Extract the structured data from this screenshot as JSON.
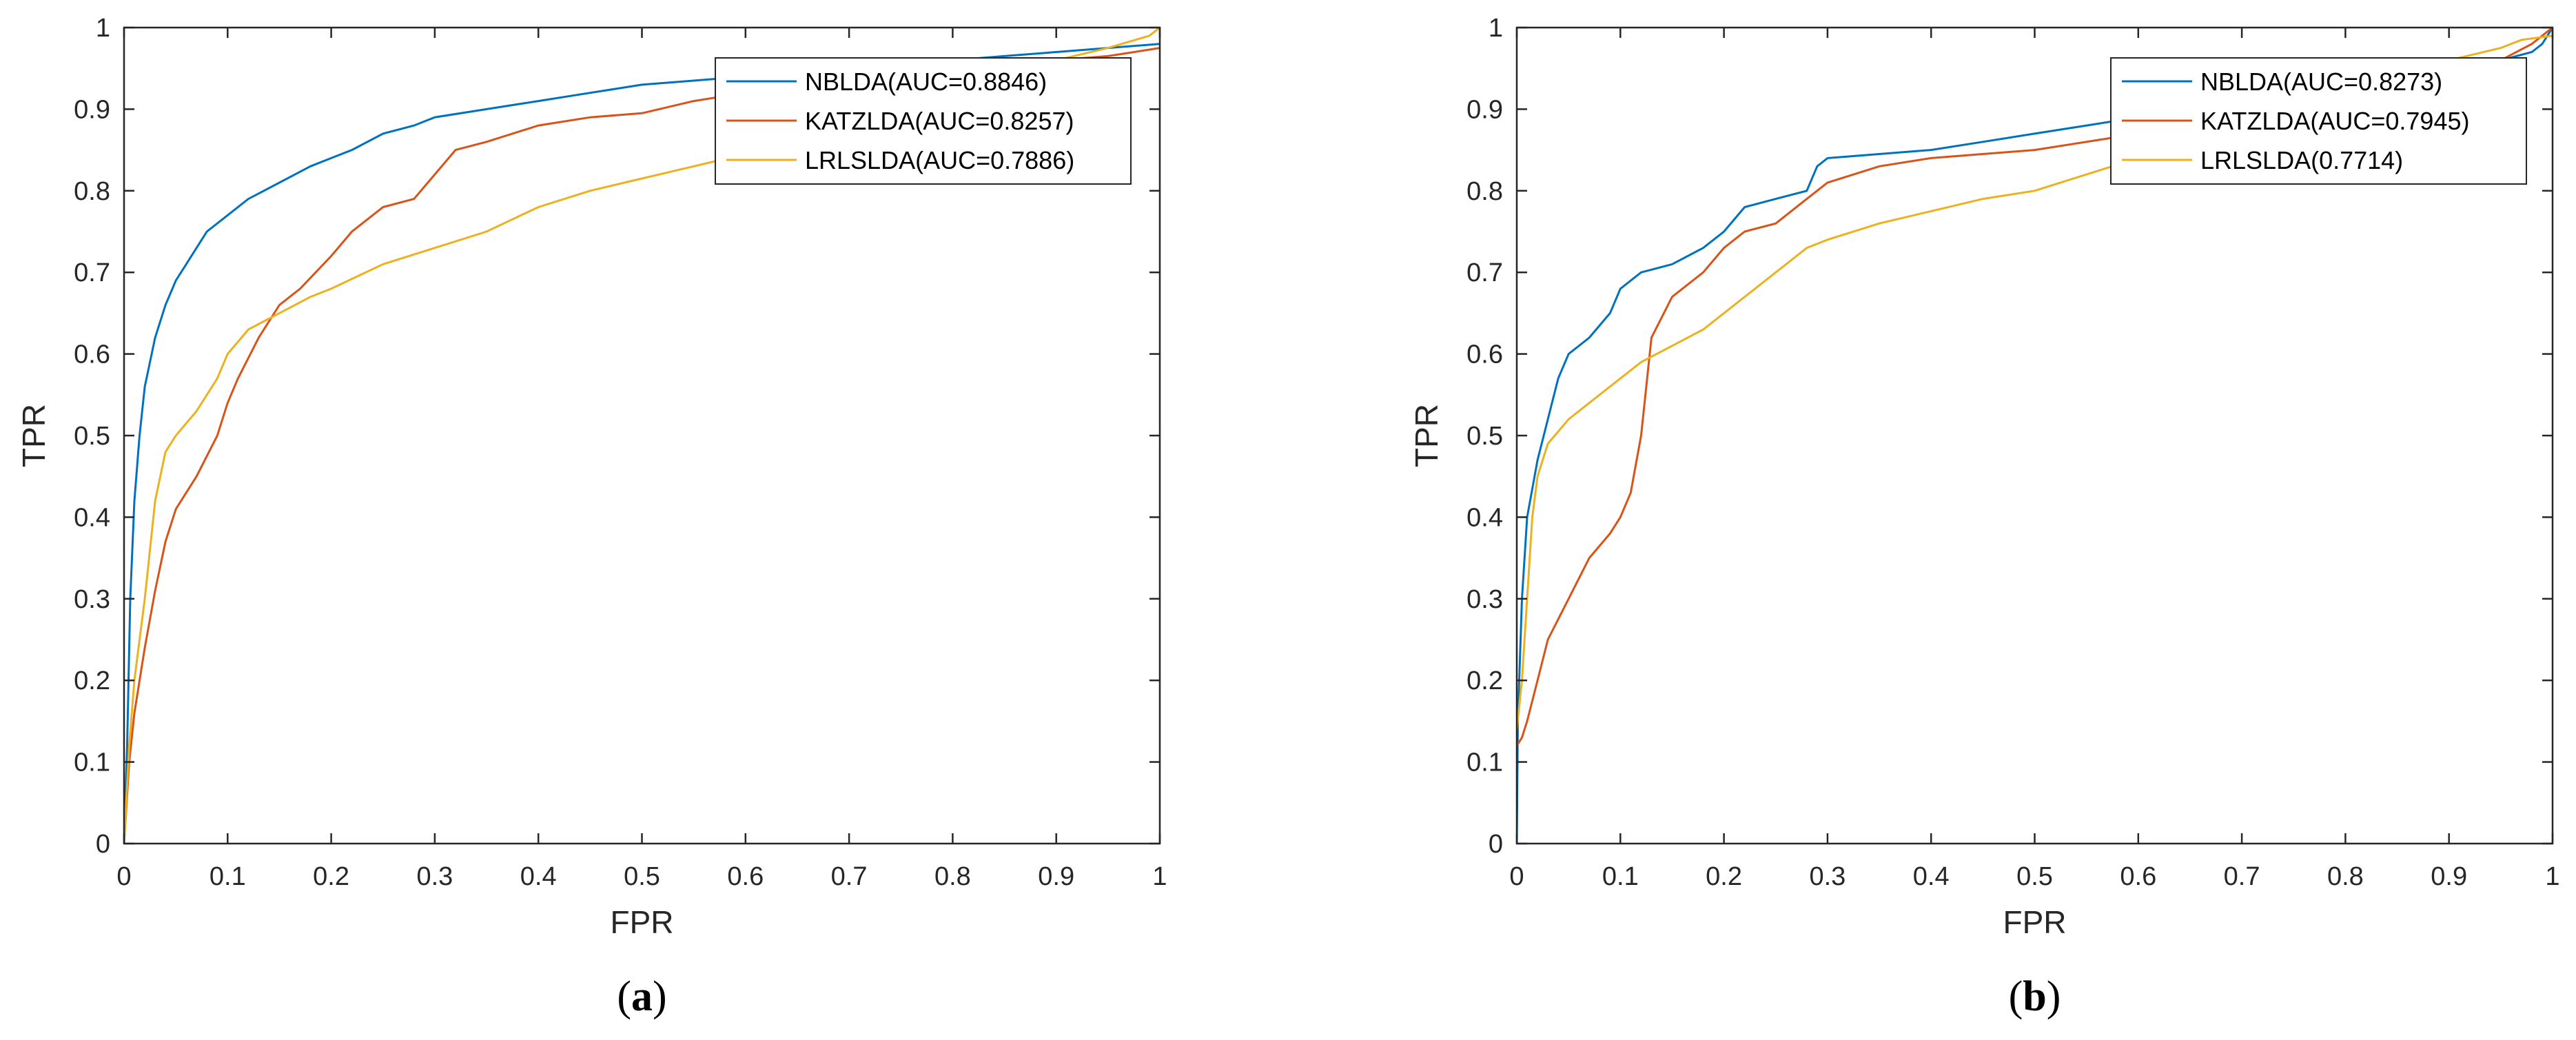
{
  "colors": {
    "series1": "#0072BD",
    "series2": "#D95319",
    "series3": "#EDB120",
    "axis": "#262626"
  },
  "chart_data": [
    {
      "type": "line",
      "panel_label_open": "(",
      "panel_label_letter": "a",
      "panel_label_close": ")",
      "xlabel": "FPR",
      "ylabel": "TPR",
      "xlim": [
        0,
        1
      ],
      "ylim": [
        0,
        1
      ],
      "xticks": [
        "0",
        "0.1",
        "0.2",
        "0.3",
        "0.4",
        "0.5",
        "0.6",
        "0.7",
        "0.8",
        "0.9",
        "1"
      ],
      "yticks": [
        "0",
        "0.1",
        "0.2",
        "0.3",
        "0.4",
        "0.5",
        "0.6",
        "0.7",
        "0.8",
        "0.9",
        "1"
      ],
      "legend_position": "top-right",
      "grid": false,
      "series": [
        {
          "name": "NBLDA(AUC=0.8846)",
          "x": [
            0,
            0.003,
            0.006,
            0.01,
            0.015,
            0.02,
            0.03,
            0.04,
            0.05,
            0.06,
            0.07,
            0.08,
            0.1,
            0.12,
            0.15,
            0.18,
            0.2,
            0.22,
            0.25,
            0.28,
            0.3,
            0.35,
            0.4,
            0.45,
            0.5,
            0.55,
            0.6,
            0.65,
            0.7,
            0.75,
            0.8,
            0.85,
            0.9,
            0.95,
            1.0
          ],
          "y": [
            0,
            0.12,
            0.3,
            0.42,
            0.5,
            0.56,
            0.62,
            0.66,
            0.69,
            0.71,
            0.73,
            0.75,
            0.77,
            0.79,
            0.81,
            0.83,
            0.84,
            0.85,
            0.87,
            0.88,
            0.89,
            0.9,
            0.91,
            0.92,
            0.93,
            0.935,
            0.94,
            0.945,
            0.95,
            0.955,
            0.96,
            0.965,
            0.97,
            0.975,
            0.98
          ]
        },
        {
          "name": "KATZLDA(AUC=0.8257)",
          "x": [
            0,
            0.005,
            0.01,
            0.02,
            0.03,
            0.04,
            0.05,
            0.07,
            0.09,
            0.1,
            0.11,
            0.13,
            0.15,
            0.17,
            0.2,
            0.22,
            0.25,
            0.28,
            0.3,
            0.32,
            0.35,
            0.4,
            0.45,
            0.5,
            0.55,
            0.6,
            0.65,
            0.7,
            0.75,
            0.8,
            0.85,
            0.9,
            0.95,
            1.0
          ],
          "y": [
            0,
            0.1,
            0.16,
            0.24,
            0.31,
            0.37,
            0.41,
            0.45,
            0.5,
            0.54,
            0.57,
            0.62,
            0.66,
            0.68,
            0.72,
            0.75,
            0.78,
            0.79,
            0.82,
            0.85,
            0.86,
            0.88,
            0.89,
            0.895,
            0.91,
            0.92,
            0.925,
            0.93,
            0.935,
            0.94,
            0.95,
            0.96,
            0.965,
            0.975
          ]
        },
        {
          "name": "LRLSLDA(AUC=0.7886)",
          "x": [
            0,
            0.005,
            0.01,
            0.02,
            0.03,
            0.04,
            0.05,
            0.07,
            0.09,
            0.1,
            0.12,
            0.15,
            0.18,
            0.2,
            0.25,
            0.3,
            0.35,
            0.4,
            0.45,
            0.5,
            0.55,
            0.6,
            0.65,
            0.7,
            0.75,
            0.8,
            0.85,
            0.9,
            0.95,
            0.99,
            1.0
          ],
          "y": [
            0,
            0.12,
            0.2,
            0.3,
            0.42,
            0.48,
            0.5,
            0.53,
            0.57,
            0.6,
            0.63,
            0.65,
            0.67,
            0.68,
            0.71,
            0.73,
            0.75,
            0.78,
            0.8,
            0.815,
            0.83,
            0.845,
            0.86,
            0.88,
            0.9,
            0.92,
            0.94,
            0.96,
            0.975,
            0.99,
            1.0
          ]
        }
      ]
    },
    {
      "type": "line",
      "panel_label_open": "(",
      "panel_label_letter": "b",
      "panel_label_close": ")",
      "xlabel": "FPR",
      "ylabel": "TPR",
      "xlim": [
        0,
        1
      ],
      "ylim": [
        0,
        1
      ],
      "xticks": [
        "0",
        "0.1",
        "0.2",
        "0.3",
        "0.4",
        "0.5",
        "0.6",
        "0.7",
        "0.8",
        "0.9",
        "1"
      ],
      "yticks": [
        "0",
        "0.1",
        "0.2",
        "0.3",
        "0.4",
        "0.5",
        "0.6",
        "0.7",
        "0.8",
        "0.9",
        "1"
      ],
      "legend_position": "top-right",
      "grid": false,
      "series": [
        {
          "name": "NBLDA(AUC=0.8273)",
          "x": [
            0,
            0.001,
            0.005,
            0.01,
            0.02,
            0.03,
            0.04,
            0.05,
            0.07,
            0.09,
            0.1,
            0.12,
            0.15,
            0.18,
            0.2,
            0.22,
            0.25,
            0.28,
            0.29,
            0.3,
            0.35,
            0.4,
            0.45,
            0.5,
            0.55,
            0.6,
            0.65,
            0.7,
            0.75,
            0.8,
            0.85,
            0.9,
            0.95,
            0.98,
            0.99,
            1.0
          ],
          "y": [
            0,
            0.15,
            0.3,
            0.4,
            0.47,
            0.52,
            0.57,
            0.6,
            0.62,
            0.65,
            0.68,
            0.7,
            0.71,
            0.73,
            0.75,
            0.78,
            0.79,
            0.8,
            0.83,
            0.84,
            0.845,
            0.85,
            0.86,
            0.87,
            0.88,
            0.89,
            0.9,
            0.91,
            0.92,
            0.93,
            0.94,
            0.95,
            0.96,
            0.97,
            0.98,
            1.0
          ]
        },
        {
          "name": "KATZLDA(AUC=0.7945)",
          "x": [
            0,
            0.005,
            0.01,
            0.02,
            0.03,
            0.05,
            0.07,
            0.09,
            0.1,
            0.11,
            0.12,
            0.13,
            0.15,
            0.18,
            0.2,
            0.22,
            0.25,
            0.28,
            0.3,
            0.35,
            0.4,
            0.45,
            0.5,
            0.55,
            0.6,
            0.65,
            0.7,
            0.75,
            0.8,
            0.85,
            0.9,
            0.95,
            0.98,
            1.0
          ],
          "y": [
            0.12,
            0.13,
            0.15,
            0.2,
            0.25,
            0.3,
            0.35,
            0.38,
            0.4,
            0.43,
            0.5,
            0.62,
            0.67,
            0.7,
            0.73,
            0.75,
            0.76,
            0.79,
            0.81,
            0.83,
            0.84,
            0.845,
            0.85,
            0.86,
            0.87,
            0.88,
            0.89,
            0.9,
            0.91,
            0.92,
            0.94,
            0.96,
            0.98,
            1.0
          ]
        },
        {
          "name": "LRLSLDA(0.7714)",
          "x": [
            0,
            0.005,
            0.01,
            0.015,
            0.02,
            0.03,
            0.05,
            0.07,
            0.1,
            0.12,
            0.15,
            0.18,
            0.2,
            0.25,
            0.28,
            0.3,
            0.35,
            0.4,
            0.45,
            0.5,
            0.55,
            0.6,
            0.65,
            0.7,
            0.75,
            0.8,
            0.85,
            0.9,
            0.95,
            0.97,
            1.0
          ],
          "y": [
            0.14,
            0.2,
            0.3,
            0.4,
            0.45,
            0.49,
            0.52,
            0.54,
            0.57,
            0.59,
            0.61,
            0.63,
            0.65,
            0.7,
            0.73,
            0.74,
            0.76,
            0.775,
            0.79,
            0.8,
            0.82,
            0.84,
            0.86,
            0.88,
            0.9,
            0.92,
            0.94,
            0.96,
            0.975,
            0.985,
            0.99
          ]
        }
      ]
    }
  ]
}
